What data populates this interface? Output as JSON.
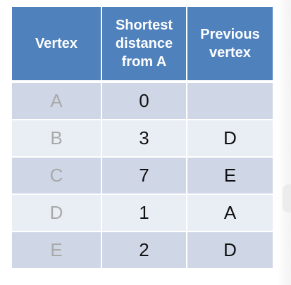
{
  "table": {
    "headers": {
      "vertex": "Vertex",
      "distance": [
        "Shortest",
        "distance",
        "from A"
      ],
      "previous": [
        "Previous",
        "vertex"
      ]
    },
    "rows": [
      {
        "vertex": "A",
        "distance": "0",
        "previous": ""
      },
      {
        "vertex": "B",
        "distance": "3",
        "previous": "D"
      },
      {
        "vertex": "C",
        "distance": "7",
        "previous": "E"
      },
      {
        "vertex": "D",
        "distance": "1",
        "previous": "A"
      },
      {
        "vertex": "E",
        "distance": "2",
        "previous": "D"
      }
    ]
  },
  "colors": {
    "header": "#4f81bd",
    "row_dark": "#cfd7e6",
    "row_light": "#e9edf4",
    "vertex_text": "#a9a9a9"
  }
}
